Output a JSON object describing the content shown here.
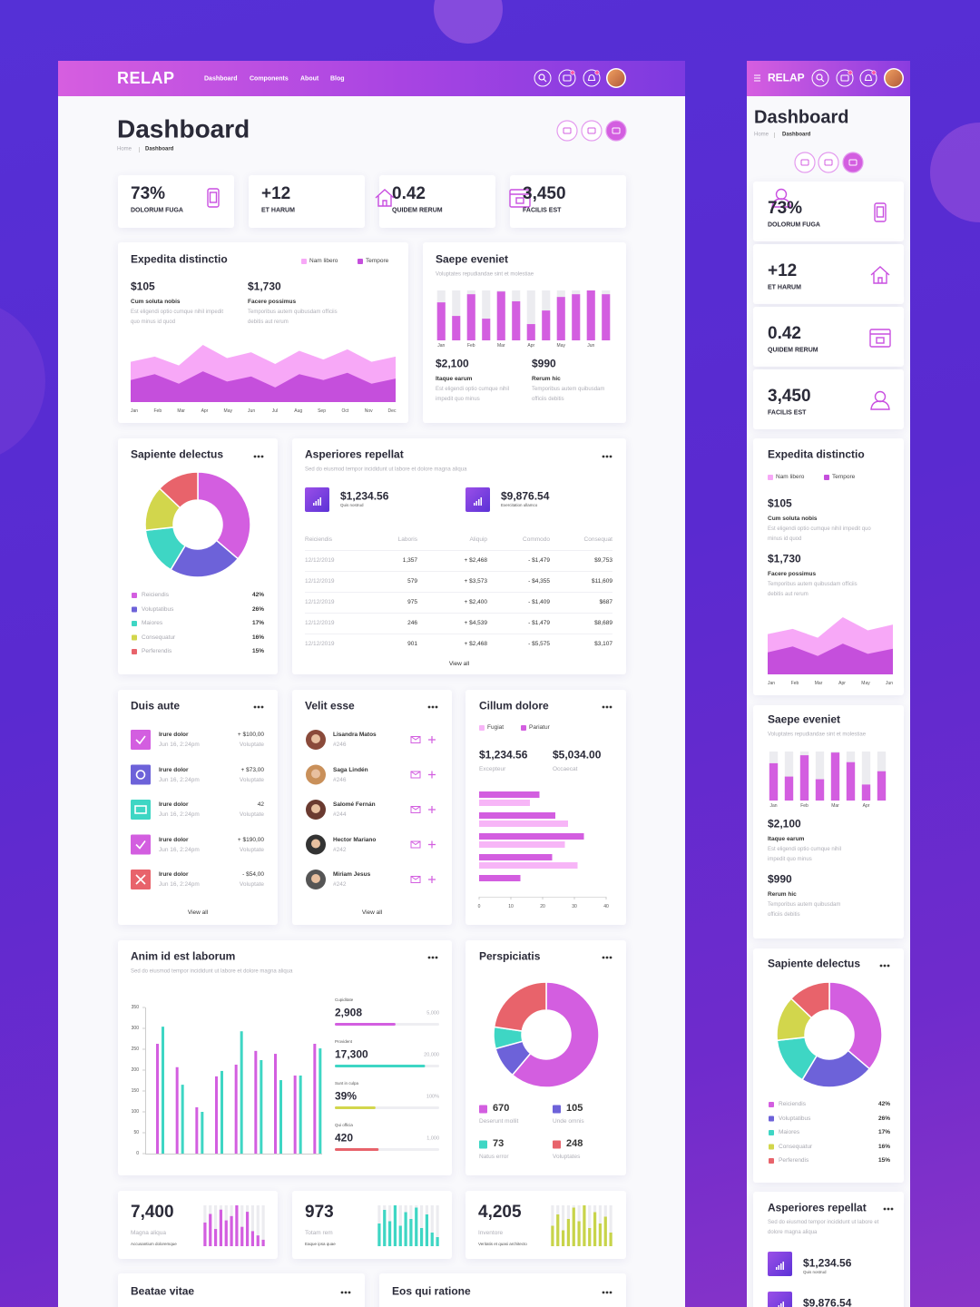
{
  "nav": {
    "brand": "RELAP",
    "links": [
      "Dashboard",
      "Components",
      "About",
      "Blog"
    ]
  },
  "header": {
    "title": "Dashboard",
    "breadcrumb": [
      "Home",
      "Dashboard"
    ]
  },
  "stats": [
    {
      "value": "73%",
      "label": "DOLORUM FUGA"
    },
    {
      "value": "+12",
      "label": "ET HARUM"
    },
    {
      "value": "0.42",
      "label": "QUIDEM RERUM"
    },
    {
      "value": "3,450",
      "label": "FACILIS EST"
    }
  ],
  "cards": {
    "expedita": {
      "title": "Expedita distinctio",
      "kpis": [
        {
          "value": "$105",
          "label": "Cum soluta nobis",
          "text": "Est eligendi optio cumque nihil impedit quo minus id quod"
        },
        {
          "value": "$1,730",
          "label": "Facere possimus",
          "text": "Temporibus autem quibusdam officiis debitis aut rerum"
        }
      ]
    },
    "saepe": {
      "title": "Saepe eveniet",
      "subtitle": "Voluptates repudiandae sint et molestiae",
      "kpis": [
        {
          "value": "$2,100",
          "label": "Itaque earum",
          "text": "Est eligendi optio cumque nihil impedit quo minus"
        },
        {
          "value": "$990",
          "label": "Rerum hic",
          "text": "Temporibus autem quibusdam officiis debitis"
        }
      ]
    },
    "sapiente": {
      "title": "Sapiente delectus"
    },
    "asperiores": {
      "title": "Asperiores repellat",
      "subtitle": "Sed do eiusmod tempor incididunt ut labore et dolore magna aliqua",
      "kpis": [
        {
          "value": "$1,234.56",
          "label": "Quis nostrud"
        },
        {
          "value": "$9,876.54",
          "label": "Exercitation ullamco"
        }
      ],
      "columns": [
        "Reiciendis",
        "Laboris",
        "Aliquip",
        "Commodo",
        "Consequat"
      ],
      "rows": [
        [
          "12/12/2019",
          "1,357",
          "+ $2,468",
          "- $1,479",
          "$9,753"
        ],
        [
          "12/12/2019",
          "579",
          "+ $3,573",
          "- $4,355",
          "$11,609"
        ],
        [
          "12/12/2019",
          "975",
          "+ $2,400",
          "- $1,409",
          "$687"
        ],
        [
          "12/12/2019",
          "246",
          "+ $4,539",
          "- $1,479",
          "$8,689"
        ],
        [
          "12/12/2019",
          "901",
          "+ $2,468",
          "- $5,575",
          "$3,107"
        ]
      ],
      "link": "View all"
    },
    "duis": {
      "title": "Duis aute",
      "items": [
        {
          "title": "Irure dolor",
          "date": "Jun 16, 2:24pm",
          "value": "+ $100,00",
          "note": "Voluptate"
        },
        {
          "title": "Irure dolor",
          "date": "Jun 16, 2:24pm",
          "value": "+ $73,00",
          "note": "Voluptate"
        },
        {
          "title": "Irure dolor",
          "date": "Jun 16, 2:24pm",
          "value": "42",
          "note": "Voluptate"
        },
        {
          "title": "Irure dolor",
          "date": "Jun 16, 2:24pm",
          "value": "+ $190,00",
          "note": "Voluptate"
        },
        {
          "title": "Irure dolor",
          "date": "Jun 16, 2:24pm",
          "value": "- $54,00",
          "note": "Voluptate"
        }
      ],
      "link": "View all"
    },
    "velit": {
      "title": "Velit esse",
      "people": [
        {
          "name": "Lisandra Matos",
          "id": "#246"
        },
        {
          "name": "Saga Lindén",
          "id": "#246"
        },
        {
          "name": "Salomé Fernán",
          "id": "#244"
        },
        {
          "name": "Hector Mariano",
          "id": "#242"
        },
        {
          "name": "Miriam Jesus",
          "id": "#242"
        }
      ],
      "link": "View all"
    },
    "cillum": {
      "title": "Cillum dolore",
      "kpis": [
        {
          "value": "$1,234.56",
          "label": "Excepteur"
        },
        {
          "value": "$5,034.00",
          "label": "Occaecat"
        }
      ]
    },
    "anim": {
      "title": "Anim id est laborum",
      "subtitle": "Sed do eiusmod tempor incididunt ut labore et dolore magna aliqua",
      "progress": [
        {
          "label": "Cupiditate",
          "value": 2908,
          "value_label": "2,908",
          "max": 5000,
          "max_label": "5,000",
          "color": "#d35ee0"
        },
        {
          "label": "Provident",
          "value": 17300,
          "value_label": "17,300",
          "max": 20000,
          "max_label": "20,000",
          "color": "#3ed6c4"
        },
        {
          "label": "Sunt in culpa",
          "value": 39,
          "value_label": "39%",
          "max": 100,
          "max_label": "100%",
          "color": "#d2d64c"
        },
        {
          "label": "Qui officia",
          "value": 420,
          "value_label": "420",
          "max": 1000,
          "max_label": "1,000",
          "color": "#e8636b"
        }
      ]
    },
    "perspiciatis": {
      "title": "Perspiciatis"
    },
    "minis": [
      {
        "value": "7,400",
        "label": "Magna aliqua",
        "text": "Accusantium doloremque"
      },
      {
        "value": "973",
        "label": "Totam rem",
        "text": "Eaque ipsa quae"
      },
      {
        "value": "4,205",
        "label": "Inventore",
        "text": "Veritatis et quasi architecto"
      }
    ],
    "bottom": [
      "Beatae vitae",
      "Eos qui ratione"
    ]
  },
  "chart_data": [
    {
      "type": "area",
      "categories": [
        "Jan",
        "Feb",
        "Mar",
        "Apr",
        "May",
        "Jun",
        "Jul",
        "Aug",
        "Sep",
        "Oct",
        "Nov",
        "Dec"
      ],
      "series": [
        {
          "name": "Nam libero",
          "color": "#f7a8f7",
          "values": [
            55,
            62,
            50,
            78,
            60,
            68,
            52,
            70,
            58,
            72,
            55,
            62
          ]
        },
        {
          "name": "Tempore",
          "color": "#c54fdc",
          "values": [
            30,
            38,
            25,
            42,
            28,
            35,
            20,
            38,
            30,
            40,
            25,
            32
          ]
        }
      ]
    },
    {
      "type": "bar",
      "categories": [
        "Jan",
        null,
        "Feb",
        null,
        "Mar",
        null,
        "Apr",
        null,
        "May",
        null,
        "Jun",
        null
      ],
      "values": [
        70,
        45,
        85,
        40,
        90,
        72,
        30,
        55,
        80,
        85,
        92,
        85
      ],
      "color": "#d35ee0"
    },
    {
      "type": "donut",
      "categories": [
        "Reiciendis",
        "Voluptatibus",
        "Maiores",
        "Consequatur",
        "Perferendis"
      ],
      "values": [
        42,
        26,
        17,
        16,
        15
      ],
      "value_labels": [
        "42%",
        "26%",
        "17%",
        "16%",
        "15%"
      ],
      "colors": [
        "#d35ee0",
        "#6d62d9",
        "#3ed6c4",
        "#d2d64c",
        "#e8636b"
      ]
    },
    {
      "type": "hbar",
      "categories": [
        null,
        null,
        null,
        null,
        null
      ],
      "series": [
        {
          "name": "Fugiat",
          "color": "#f7b5f7",
          "values": [
            16,
            28,
            27,
            31,
            null
          ]
        },
        {
          "name": "Pariatur",
          "color": "#d35ee0",
          "values": [
            19,
            24,
            33,
            23,
            13
          ]
        }
      ],
      "xlim": [
        0,
        40
      ],
      "xticks": [
        0,
        10,
        20,
        30,
        40
      ]
    },
    {
      "type": "bar",
      "categories": [
        null,
        null,
        null,
        null,
        null,
        null,
        null,
        null,
        null
      ],
      "series": [
        {
          "color": "#d35ee0",
          "values": [
            263,
            207,
            111,
            185,
            213,
            246,
            239,
            187,
            263
          ]
        },
        {
          "color": "#3ed6c4",
          "values": [
            304,
            165,
            100,
            198,
            293,
            224,
            176,
            187,
            252
          ]
        }
      ],
      "ylim": [
        0,
        350
      ],
      "yticks": [
        0,
        50,
        100,
        150,
        200,
        250,
        300,
        350
      ]
    },
    {
      "type": "donut",
      "categories": [
        "Deserunt mollit",
        "Unde omnis",
        "Natus error",
        "Voluptates"
      ],
      "values": [
        670,
        105,
        73,
        248
      ],
      "colors": [
        "#d35ee0",
        "#6d62d9",
        "#3ed6c4",
        "#e8636b"
      ]
    },
    {
      "type": "bar",
      "values": [
        55,
        75,
        40,
        85,
        60,
        70,
        95,
        45,
        80,
        35,
        25,
        15
      ],
      "color": "#d35ee0"
    },
    {
      "type": "bar",
      "values": [
        50,
        80,
        55,
        90,
        45,
        75,
        60,
        85,
        40,
        70,
        30,
        20
      ],
      "color": "#3ed6c4"
    },
    {
      "type": "bar",
      "values": [
        45,
        70,
        35,
        60,
        85,
        55,
        90,
        40,
        75,
        50,
        65,
        30
      ],
      "color": "#c8d44a"
    }
  ]
}
